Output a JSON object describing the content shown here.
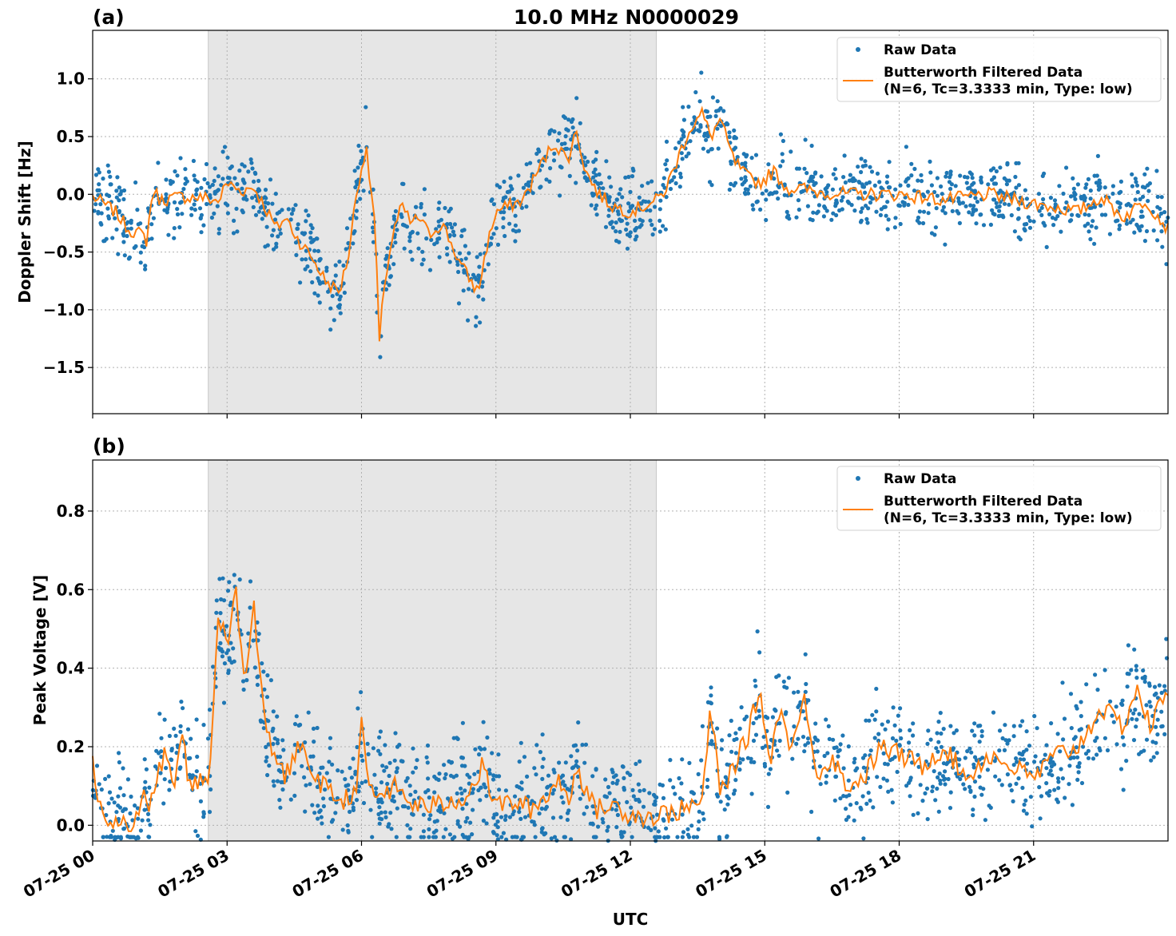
{
  "figure": {
    "title": "10.0 MHz N0000029",
    "xlabel": "UTC",
    "x_tick_labels": [
      "07-25 00",
      "07-25 03",
      "07-25 06",
      "07-25 09",
      "07-25 12",
      "07-25 15",
      "07-25 18",
      "07-25 21"
    ],
    "x_ticks_hours": [
      0,
      3,
      6,
      9,
      12,
      15,
      18,
      21
    ],
    "xlim_hours": [
      0,
      24
    ],
    "shaded_interval_hours": [
      2.58,
      12.58
    ],
    "colors": {
      "raw": "#1f77b4",
      "filtered": "#ff7f0e",
      "shade": "#e6e6e6",
      "grid": "#b0b0b0"
    }
  },
  "chart_data": [
    {
      "type": "line",
      "panel_label": "(a)",
      "ylabel": "Doppler Shift [Hz]",
      "ylim": [
        -1.9,
        1.42
      ],
      "y_ticks": [
        1.0,
        0.5,
        0.0,
        -0.5,
        -1.0,
        -1.5
      ],
      "y_tick_labels": [
        "1.0",
        "0.5",
        "0.0",
        "−0.5",
        "−1.0",
        "−1.5"
      ],
      "grid": true,
      "legend": {
        "position": "top-right",
        "entries": [
          "Raw Data",
          "Butterworth Filtered Data",
          "(N=6, Tc=3.3333 min, Type: low)"
        ]
      },
      "series": [
        {
          "name": "Raw Data",
          "style": "points",
          "band": 0.2
        },
        {
          "name": "Butterworth Filtered Data",
          "style": "line",
          "x": [
            0,
            0.5,
            0.8,
            1.1,
            1.2,
            1.35,
            1.5,
            2.0,
            2.5,
            2.8,
            3.0,
            3.3,
            3.6,
            3.9,
            4.1,
            4.3,
            4.6,
            4.9,
            5.2,
            5.5,
            5.7,
            5.9,
            6.1,
            6.3,
            6.4,
            6.5,
            6.7,
            6.9,
            7.1,
            7.3,
            7.5,
            7.8,
            8.2,
            8.6,
            8.8,
            9.0,
            9.3,
            9.6,
            10.0,
            10.3,
            10.6,
            10.8,
            11.0,
            11.3,
            11.6,
            12.0,
            12.3,
            12.6,
            12.8,
            13.1,
            13.3,
            13.6,
            13.8,
            14.0,
            14.3,
            14.6,
            14.9,
            15.2,
            15.5,
            15.8,
            16.2,
            17.0,
            18.0,
            19.0,
            20.0,
            21.0,
            22.0,
            22.5,
            23.0,
            23.5,
            24.0
          ],
          "y": [
            -0.02,
            -0.15,
            -0.3,
            -0.35,
            -0.4,
            0.05,
            -0.05,
            -0.02,
            -0.03,
            -0.06,
            0.1,
            0.03,
            0.06,
            -0.15,
            -0.3,
            -0.2,
            -0.4,
            -0.55,
            -0.75,
            -0.85,
            -0.55,
            0.05,
            0.4,
            -0.25,
            -1.3,
            -0.8,
            -0.35,
            -0.1,
            -0.25,
            -0.2,
            -0.35,
            -0.25,
            -0.6,
            -0.85,
            -0.45,
            -0.15,
            -0.1,
            -0.05,
            0.25,
            0.45,
            0.3,
            0.55,
            0.2,
            0.0,
            -0.1,
            -0.15,
            -0.1,
            -0.05,
            0.05,
            0.35,
            0.55,
            0.7,
            0.5,
            0.65,
            0.3,
            0.15,
            0.1,
            0.2,
            0.05,
            0.05,
            0.02,
            0.0,
            0.0,
            -0.05,
            0.0,
            -0.08,
            -0.15,
            -0.02,
            -0.2,
            -0.05,
            -0.3
          ]
        }
      ]
    },
    {
      "type": "line",
      "panel_label": "(b)",
      "ylabel": "Peak Voltage [V]",
      "ylim": [
        -0.04,
        0.93
      ],
      "y_ticks": [
        0.0,
        0.2,
        0.4,
        0.6,
        0.8
      ],
      "y_tick_labels": [
        "0.0",
        "0.2",
        "0.4",
        "0.6",
        "0.8"
      ],
      "grid": true,
      "legend": {
        "position": "top-right",
        "entries": [
          "Raw Data",
          "Butterworth Filtered Data",
          "(N=6, Tc=3.3333 min, Type: low)"
        ]
      },
      "series": [
        {
          "name": "Raw Data",
          "style": "points",
          "band": 0.09
        },
        {
          "name": "Butterworth Filtered Data",
          "style": "line",
          "x": [
            0,
            0.15,
            0.3,
            0.6,
            1.0,
            1.15,
            1.25,
            1.4,
            1.6,
            1.8,
            2.0,
            2.2,
            2.4,
            2.6,
            2.8,
            3.0,
            3.2,
            3.4,
            3.6,
            3.8,
            4.0,
            4.3,
            4.6,
            5.0,
            5.3,
            5.6,
            5.9,
            6.0,
            6.2,
            6.5,
            6.8,
            7.0,
            7.3,
            7.6,
            8.0,
            8.4,
            8.7,
            9.0,
            9.4,
            9.8,
            10.1,
            10.4,
            10.6,
            10.8,
            11.2,
            11.6,
            12.0,
            12.4,
            12.8,
            13.2,
            13.6,
            13.8,
            14.0,
            14.3,
            14.6,
            14.9,
            15.1,
            15.3,
            15.6,
            15.9,
            16.2,
            16.5,
            16.8,
            17.2,
            17.6,
            18.0,
            18.5,
            19.0,
            19.5,
            20.0,
            20.5,
            21.0,
            21.5,
            22.0,
            22.5,
            23.0,
            23.3,
            23.6,
            24.0
          ],
          "y": [
            0.15,
            0.05,
            0.02,
            0.01,
            0.01,
            0.07,
            0.02,
            0.12,
            0.18,
            0.1,
            0.22,
            0.08,
            0.12,
            0.1,
            0.55,
            0.45,
            0.6,
            0.35,
            0.55,
            0.3,
            0.2,
            0.12,
            0.2,
            0.12,
            0.08,
            0.06,
            0.1,
            0.25,
            0.08,
            0.08,
            0.1,
            0.06,
            0.05,
            0.05,
            0.06,
            0.08,
            0.15,
            0.05,
            0.06,
            0.04,
            0.07,
            0.12,
            0.06,
            0.15,
            0.04,
            0.05,
            0.03,
            0.02,
            0.03,
            0.04,
            0.06,
            0.3,
            0.08,
            0.15,
            0.22,
            0.35,
            0.15,
            0.3,
            0.2,
            0.32,
            0.12,
            0.18,
            0.1,
            0.12,
            0.2,
            0.18,
            0.15,
            0.2,
            0.12,
            0.18,
            0.15,
            0.12,
            0.18,
            0.2,
            0.3,
            0.25,
            0.35,
            0.25,
            0.35
          ]
        }
      ]
    }
  ]
}
